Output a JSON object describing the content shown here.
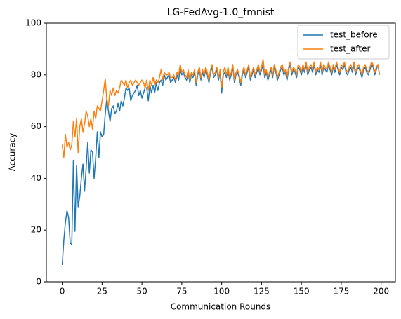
{
  "chart_data": {
    "type": "line",
    "title": "LG-FedAvg-1.0_fmnist",
    "x_label": "Communication Rounds",
    "y_label": "Accuracy",
    "x": [
      0,
      1,
      2,
      3,
      4,
      5,
      6,
      7,
      8,
      9,
      10,
      11,
      12,
      13,
      14,
      15,
      16,
      17,
      18,
      19,
      20,
      21,
      22,
      23,
      24,
      25,
      26,
      27,
      28,
      29,
      30,
      31,
      32,
      33,
      34,
      35,
      36,
      37,
      38,
      39,
      40,
      41,
      42,
      43,
      44,
      45,
      46,
      47,
      48,
      49,
      50,
      51,
      52,
      53,
      54,
      55,
      56,
      57,
      58,
      59,
      60,
      61,
      62,
      63,
      64,
      65,
      66,
      67,
      68,
      69,
      70,
      71,
      72,
      73,
      74,
      75,
      76,
      77,
      78,
      79,
      80,
      81,
      82,
      83,
      84,
      85,
      86,
      87,
      88,
      89,
      90,
      91,
      92,
      93,
      94,
      95,
      96,
      97,
      98,
      99,
      100,
      101,
      102,
      103,
      104,
      105,
      106,
      107,
      108,
      109,
      110,
      111,
      112,
      113,
      114,
      115,
      116,
      117,
      118,
      119,
      120,
      121,
      122,
      123,
      124,
      125,
      126,
      127,
      128,
      129,
      130,
      131,
      132,
      133,
      134,
      135,
      136,
      137,
      138,
      139,
      140,
      141,
      142,
      143,
      144,
      145,
      146,
      147,
      148,
      149,
      150,
      151,
      152,
      153,
      154,
      155,
      156,
      157,
      158,
      159,
      160,
      161,
      162,
      163,
      164,
      165,
      166,
      167,
      168,
      169,
      170,
      171,
      172,
      173,
      174,
      175,
      176,
      177,
      178,
      179,
      180,
      181,
      182,
      183,
      184,
      185,
      186,
      187,
      188,
      189,
      190,
      191,
      192,
      193,
      194,
      195,
      196,
      197,
      198,
      199
    ],
    "series": [
      {
        "name": "test_before",
        "color": "#1f77b4",
        "values": [
          6.5,
          16,
          23,
          27.5,
          25,
          15,
          14.5,
          47,
          19.5,
          45,
          29,
          33,
          40,
          45.5,
          35,
          44,
          54,
          42,
          51,
          50,
          40,
          48,
          58,
          48,
          58,
          56,
          57,
          65,
          71,
          66,
          62,
          67,
          68,
          65,
          66,
          69,
          66,
          70,
          68,
          71,
          75,
          74,
          75,
          70,
          72,
          73,
          74,
          76,
          72,
          74,
          71,
          73,
          75,
          75,
          70,
          76,
          73,
          76,
          73,
          77,
          74,
          77,
          78,
          76,
          80,
          78,
          79,
          80,
          77,
          78,
          79,
          77,
          80,
          78,
          82,
          80,
          81,
          79,
          78,
          81,
          77,
          80,
          79,
          81,
          76,
          80,
          82,
          78,
          81,
          79,
          82,
          80,
          77,
          81,
          83,
          79,
          80,
          82,
          78,
          81,
          73,
          80,
          81,
          79,
          82,
          78,
          80,
          83,
          77,
          80,
          81,
          79,
          76,
          80,
          82,
          79,
          81,
          83,
          78,
          80,
          82,
          79,
          81,
          83,
          80,
          82,
          84,
          79,
          81,
          78,
          80,
          82,
          79,
          83,
          81,
          78,
          80,
          82,
          83,
          80,
          81,
          78,
          82,
          84,
          80,
          82,
          81,
          79,
          83,
          82,
          80,
          83,
          81,
          84,
          80,
          82,
          83,
          81,
          84,
          80,
          82,
          81,
          84,
          80,
          83,
          82,
          81,
          84,
          82,
          80,
          83,
          81,
          84,
          82,
          80,
          83,
          82,
          84,
          81,
          80,
          82,
          83,
          81,
          84,
          80,
          82,
          83,
          81,
          79,
          82,
          83,
          81,
          80,
          82,
          84,
          83,
          80,
          82,
          84,
          80
        ]
      },
      {
        "name": "test_after",
        "color": "#ff7f0e",
        "values": [
          53,
          48,
          57,
          52,
          54,
          51,
          53,
          62,
          56,
          63,
          50,
          60,
          63,
          58,
          61,
          66,
          64,
          60,
          63,
          59,
          66,
          63,
          68,
          67,
          66,
          70,
          74,
          78.5,
          70,
          68,
          74,
          72,
          75,
          72,
          74,
          73,
          75,
          78,
          77,
          76,
          78,
          75,
          77,
          78,
          76,
          77,
          78,
          77,
          76,
          77,
          78,
          77,
          75,
          78,
          74,
          78,
          76,
          79,
          76,
          78,
          77,
          79,
          82,
          78,
          81,
          80,
          80,
          81,
          79,
          79,
          80,
          78,
          81,
          80,
          84,
          81,
          82,
          80,
          79,
          82,
          78,
          81,
          80,
          82,
          77,
          81,
          83,
          79,
          82,
          80,
          83,
          81,
          78,
          82,
          84,
          80,
          81,
          83,
          79,
          82,
          75,
          81,
          83,
          80,
          83,
          79,
          81,
          84,
          78,
          81,
          82,
          80,
          77,
          81,
          83,
          80,
          82,
          84,
          79,
          81,
          83,
          80,
          82,
          84,
          81,
          83,
          86,
          80,
          82,
          79,
          81,
          83,
          80,
          84,
          82,
          79,
          81,
          83,
          84,
          81,
          82,
          79,
          83,
          85,
          81,
          83,
          82,
          80,
          84,
          83,
          81,
          84,
          82,
          85,
          81,
          83,
          84,
          82,
          85,
          81,
          83,
          82,
          85,
          81,
          84,
          83,
          82,
          85,
          83,
          81,
          84,
          82,
          85,
          83,
          81,
          84,
          83,
          85,
          82,
          81,
          83,
          84,
          82,
          85,
          81,
          83,
          84,
          82,
          80,
          83,
          84,
          82,
          81,
          83,
          85,
          84,
          81,
          83,
          84,
          80
        ]
      }
    ],
    "xlim": [
      -9.95,
      208.95
    ],
    "xticks": [
      0,
      25,
      50,
      75,
      100,
      125,
      150,
      175,
      200
    ],
    "ylim": [
      0,
      100
    ],
    "yticks": [
      0,
      20,
      40,
      60,
      80,
      100
    ],
    "legend": "upper right",
    "grid": false
  }
}
